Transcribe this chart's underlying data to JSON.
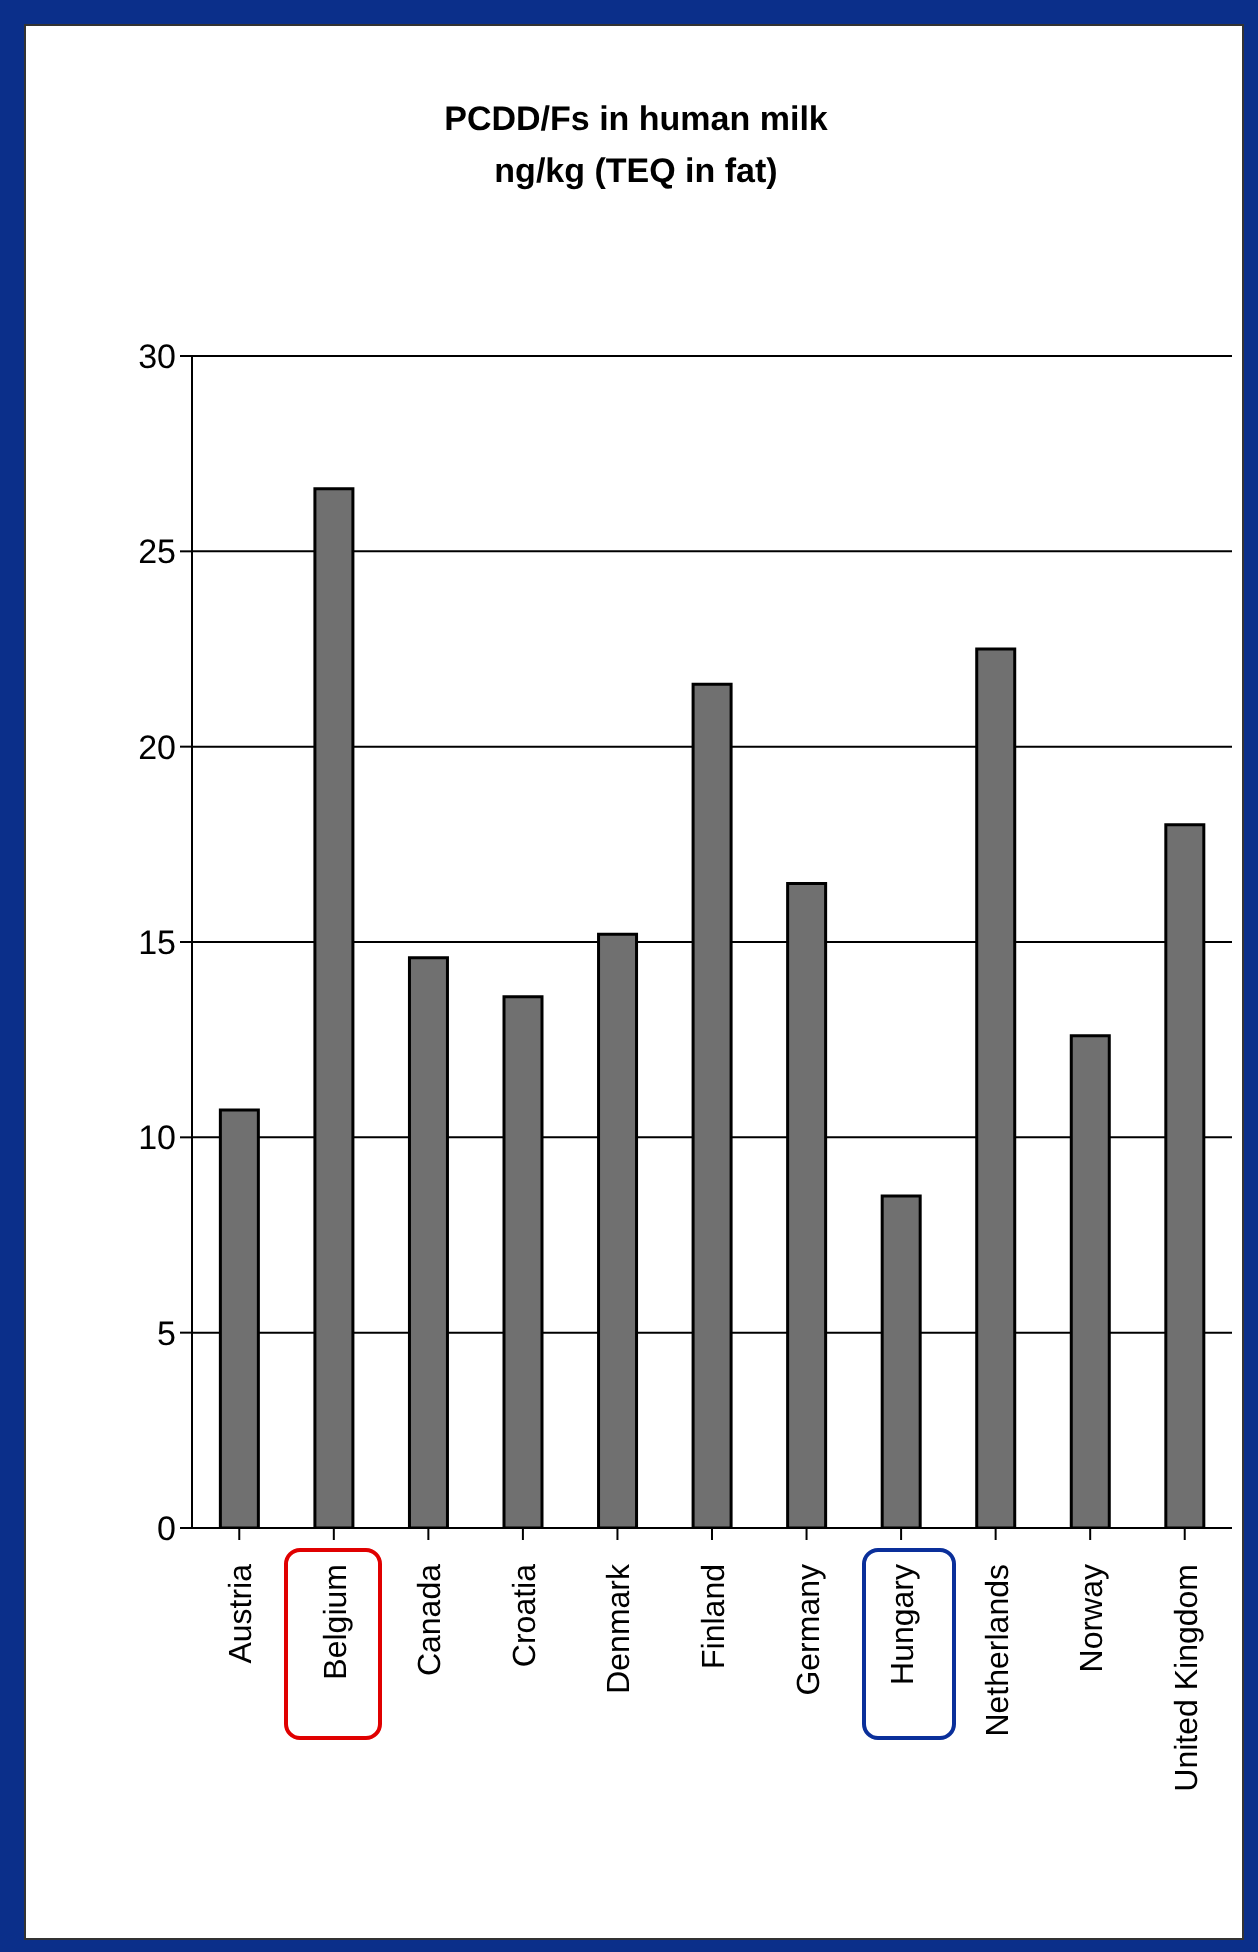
{
  "chart_data": {
    "type": "bar",
    "title": "PCDD/Fs in human milk",
    "subtitle": "ng/kg (TEQ in fat)",
    "categories": [
      "Austria",
      "Belgium",
      "Canada",
      "Croatia",
      "Denmark",
      "Finland",
      "Germany",
      "Hungary",
      "Netherlands",
      "Norway",
      "United Kingdom"
    ],
    "values": [
      10.7,
      26.6,
      14.6,
      13.6,
      15.2,
      21.6,
      16.5,
      8.5,
      22.5,
      12.6,
      18.0
    ],
    "color": "#707070",
    "ylim": [
      0,
      30
    ],
    "yticks": [
      0,
      5,
      10,
      15,
      20,
      25,
      30
    ],
    "grid": "y"
  }
}
